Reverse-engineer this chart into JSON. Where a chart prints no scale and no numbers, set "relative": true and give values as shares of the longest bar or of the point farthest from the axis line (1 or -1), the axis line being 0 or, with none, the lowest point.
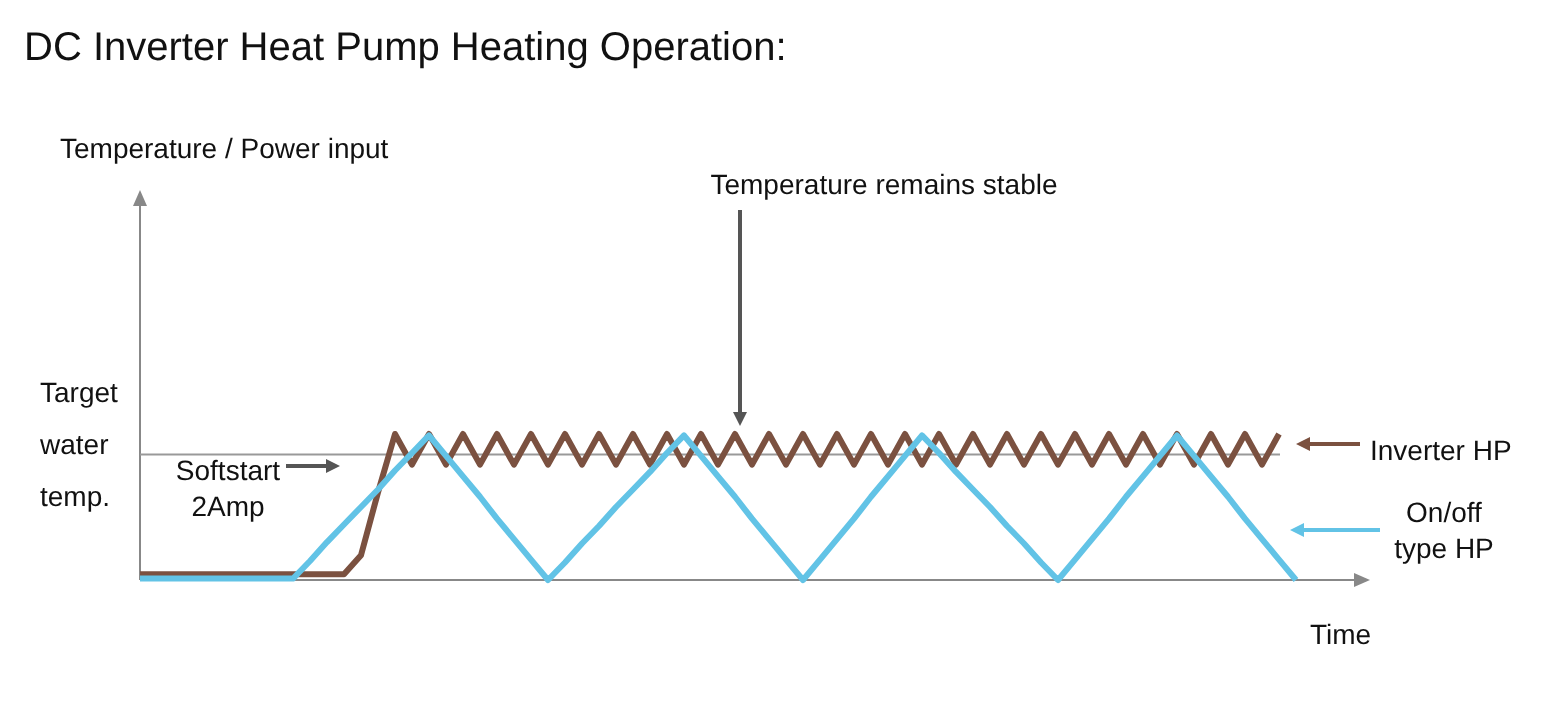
{
  "chart_data": {
    "type": "line",
    "title": "DC Inverter Heat Pump Heating Operation:",
    "xlabel": "Time",
    "relative": true,
    "legend": "right",
    "marker": "none",
    "line_style": "solid",
    "categories": [
      null,
      null,
      null,
      null,
      null,
      null,
      null,
      null,
      null,
      null,
      null,
      null,
      null,
      null,
      null,
      null,
      null,
      null,
      null,
      null,
      null,
      null,
      null,
      null,
      null,
      null,
      null,
      null,
      null,
      null,
      null,
      null,
      null,
      null,
      null,
      null,
      null,
      null,
      null,
      null,
      null,
      null,
      null,
      null,
      null,
      null,
      null,
      null,
      null,
      null,
      null,
      null,
      null,
      null,
      null,
      null,
      null,
      null,
      null,
      null,
      null,
      null,
      null,
      null,
      null,
      null,
      null,
      null,
      null
    ],
    "series": [
      {
        "name": "Inverter HP",
        "color": "#7b5140",
        "values": [
          0.04,
          0.04,
          0.04,
          0.04,
          0.04,
          0.04,
          0.04,
          0.04,
          0.04,
          0.04,
          0.04,
          0.04,
          0.04,
          0.17,
          0.6,
          1,
          0.79,
          1,
          0.79,
          1,
          0.79,
          1,
          0.79,
          1,
          0.79,
          1,
          0.79,
          1,
          0.79,
          1,
          0.79,
          1,
          0.79,
          1,
          0.79,
          1,
          0.79,
          1,
          0.79,
          1,
          0.79,
          1,
          0.79,
          1,
          0.79,
          1,
          0.79,
          1,
          0.79,
          1,
          0.79,
          1,
          0.79,
          1,
          0.79,
          1,
          0.79,
          1,
          0.79,
          1,
          0.79,
          1,
          0.79,
          1,
          0.79,
          1,
          0.79,
          1,
          null
        ]
      },
      {
        "name": "On/off\ntype HP",
        "color": "#62c3e6",
        "values": [
          0.01,
          0.01,
          0.01,
          0.01,
          0.01,
          0.01,
          0.01,
          0.01,
          0.01,
          0.01,
          0.13,
          0.26,
          0.38,
          0.5,
          0.62,
          0.75,
          0.87,
          0.99,
          0.85,
          0.71,
          0.57,
          0.42,
          0.28,
          0.14,
          0,
          0.12,
          0.25,
          0.37,
          0.5,
          0.62,
          0.74,
          0.87,
          0.99,
          0.85,
          0.71,
          0.57,
          0.42,
          0.28,
          0.14,
          0,
          0.14,
          0.28,
          0.42,
          0.57,
          0.71,
          0.85,
          0.99,
          0.87,
          0.74,
          0.62,
          0.5,
          0.37,
          0.25,
          0.12,
          0,
          0.14,
          0.28,
          0.42,
          0.57,
          0.71,
          0.85,
          0.99,
          0.85,
          0.71,
          0.57,
          0.42,
          0.28,
          0.14,
          0
        ]
      }
    ],
    "ref_lines": [
      {
        "axis": "y",
        "value": 0.86,
        "label": "Target\nwater\ntemp.",
        "color": "#999999"
      }
    ],
    "annotations": [
      "Temperature remains stable",
      "Softstart\n2Amp",
      "Temperature / Power input"
    ]
  }
}
